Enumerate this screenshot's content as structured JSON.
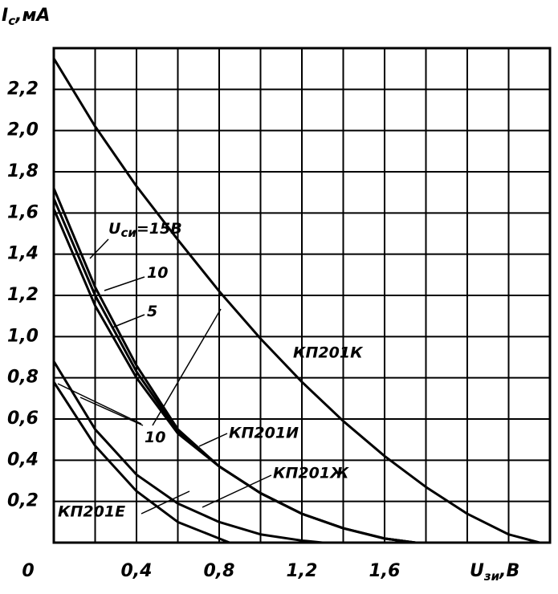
{
  "chart_data": {
    "type": "line",
    "ylabel": {
      "symbol": "I",
      "subscript": "с",
      "unit": ",мА"
    },
    "xlabel": {
      "symbol": "U",
      "subscript": "зи",
      "unit": ",В"
    },
    "xlim": [
      0,
      2.4
    ],
    "ylim": [
      0,
      2.4
    ],
    "xticks": [
      {
        "value": 0,
        "label": "0"
      },
      {
        "value": 0.4,
        "label": "0,4"
      },
      {
        "value": 0.8,
        "label": "0,8"
      },
      {
        "value": 1.2,
        "label": "1,2"
      },
      {
        "value": 1.6,
        "label": "1,6"
      }
    ],
    "yticks": [
      {
        "value": 0.2,
        "label": "0,2"
      },
      {
        "value": 0.4,
        "label": "0,4"
      },
      {
        "value": 0.6,
        "label": "0,6"
      },
      {
        "value": 0.8,
        "label": "0,8"
      },
      {
        "value": 1.0,
        "label": "1,0"
      },
      {
        "value": 1.2,
        "label": "1,2"
      },
      {
        "value": 1.4,
        "label": "1,4"
      },
      {
        "value": 1.6,
        "label": "1,6"
      },
      {
        "value": 1.8,
        "label": "1,8"
      },
      {
        "value": 2.0,
        "label": "2,0"
      },
      {
        "value": 2.2,
        "label": "2,2"
      }
    ],
    "xgrid": [
      0.2,
      0.4,
      0.6,
      0.8,
      1.0,
      1.2,
      1.4,
      1.6,
      1.8,
      2.0,
      2.2
    ],
    "grid": true,
    "series": [
      {
        "name": "КП201К",
        "color": "#000000",
        "x": [
          0,
          0.2,
          0.4,
          0.6,
          0.8,
          1.0,
          1.2,
          1.4,
          1.6,
          1.8,
          2.0,
          2.2,
          2.35
        ],
        "values": [
          2.35,
          2.02,
          1.73,
          1.47,
          1.22,
          0.99,
          0.78,
          0.59,
          0.42,
          0.27,
          0.14,
          0.04,
          0
        ]
      },
      {
        "name": "КП201И",
        "color": "#000000",
        "x": [
          0,
          0.2,
          0.4,
          0.6,
          0.8,
          1.0,
          1.2,
          1.4,
          1.6,
          1.75
        ],
        "values": [
          1.72,
          1.24,
          0.86,
          0.55,
          0.37,
          0.24,
          0.14,
          0.07,
          0.02,
          0
        ]
      },
      {
        "color": "#000000",
        "x": [
          0,
          0.2,
          0.4,
          0.6,
          0.8,
          1.0,
          1.2,
          1.4,
          1.6,
          1.75
        ],
        "values": [
          1.67,
          1.2,
          0.83,
          0.54,
          0.37,
          0.24,
          0.14,
          0.07,
          0.02,
          0
        ]
      },
      {
        "color": "#000000",
        "x": [
          0,
          0.2,
          0.4,
          0.6,
          0.8,
          1.0,
          1.2,
          1.4,
          1.6,
          1.75
        ],
        "values": [
          1.62,
          1.15,
          0.8,
          0.53,
          0.37,
          0.24,
          0.14,
          0.07,
          0.02,
          0
        ]
      },
      {
        "name": "КП201Ж",
        "color": "#000000",
        "x": [
          0,
          0.2,
          0.4,
          0.6,
          0.8,
          1.0,
          1.2,
          1.3
        ],
        "values": [
          0.88,
          0.55,
          0.33,
          0.19,
          0.1,
          0.04,
          0.01,
          0
        ]
      },
      {
        "name": "КП201Е",
        "color": "#000000",
        "x": [
          0,
          0.2,
          0.4,
          0.6,
          0.8,
          0.85
        ],
        "values": [
          0.78,
          0.47,
          0.25,
          0.1,
          0.02,
          0
        ]
      }
    ],
    "annotations": [
      {
        "symbol": "U",
        "subscript": "си",
        "text": "=15В"
      },
      {
        "text": "10"
      },
      {
        "text": "5"
      },
      {
        "text": "10"
      }
    ]
  }
}
